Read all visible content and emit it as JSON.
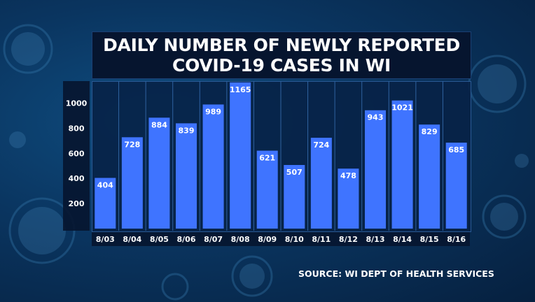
{
  "chart_data": {
    "type": "bar",
    "title": "DAILY NUMBER OF NEWLY REPORTED COVID-19 CASES IN WI",
    "title_lines": [
      "DAILY NUMBER OF NEWLY REPORTED",
      "COVID-19 CASES IN WI"
    ],
    "categories": [
      "8/03",
      "8/04",
      "8/05",
      "8/06",
      "8/07",
      "8/08",
      "8/09",
      "8/10",
      "8/11",
      "8/12",
      "8/13",
      "8/14",
      "8/15",
      "8/16"
    ],
    "values": [
      404,
      728,
      884,
      839,
      989,
      1165,
      621,
      507,
      724,
      478,
      943,
      1021,
      829,
      685
    ],
    "yticks": [
      200,
      400,
      600,
      800,
      1000
    ],
    "ylim": [
      0,
      1200
    ],
    "xlabel": "",
    "ylabel": "",
    "grid": true,
    "source": "SOURCE: WI DEPT OF HEALTH SERVICES",
    "colors": {
      "bar": "#3f74ff",
      "background": "#0a3560",
      "panel": "#071f46"
    }
  }
}
